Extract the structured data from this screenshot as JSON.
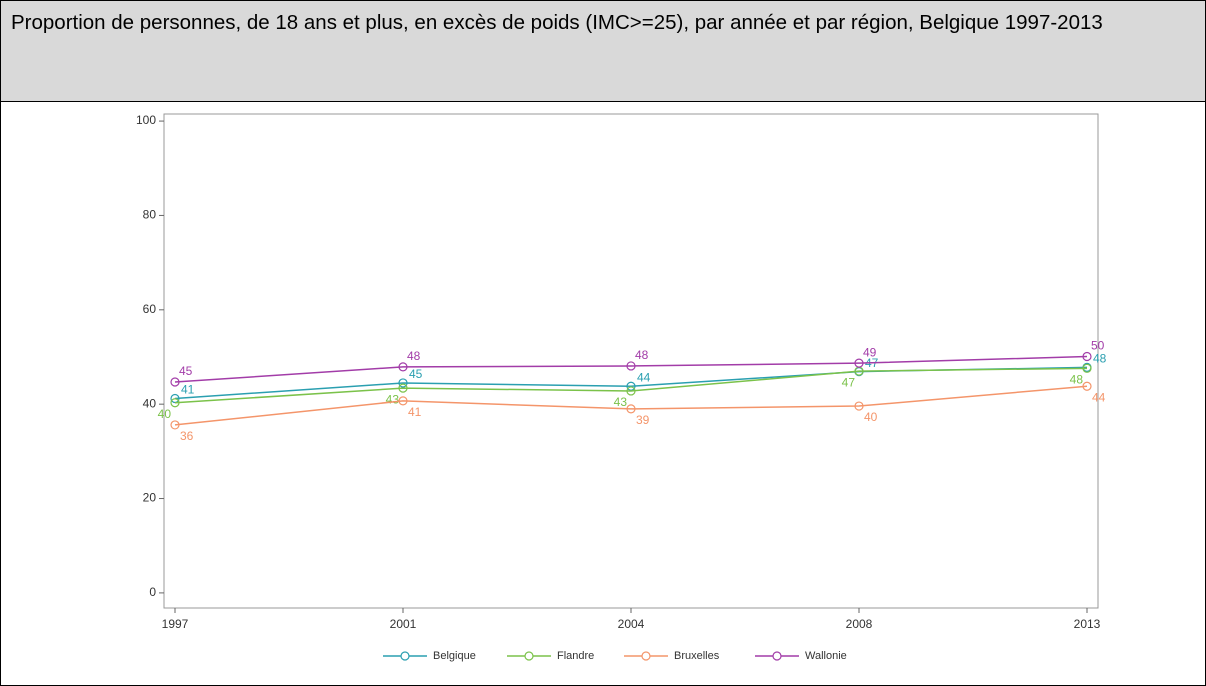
{
  "chart_data": {
    "type": "line",
    "title": "Proportion de personnes, de 18 ans et plus, en excès de poids (IMC>=25), par année et par région, Belgique 1997-2013",
    "categories": [
      "1997",
      "2001",
      "2004",
      "2008",
      "2013"
    ],
    "series": [
      {
        "name": "Belgique",
        "color": "#2a9fb0",
        "values": [
          41.2,
          44.5,
          43.8,
          46.9,
          47.8
        ],
        "value_labels": [
          "41",
          "45",
          "44",
          "47",
          "48"
        ]
      },
      {
        "name": "Flandre",
        "color": "#7bc24a",
        "values": [
          40.3,
          43.4,
          42.8,
          47.0,
          47.6
        ],
        "value_labels": [
          "40",
          "43",
          "43",
          "47",
          "48"
        ]
      },
      {
        "name": "Bruxelles",
        "color": "#f4956a",
        "values": [
          35.6,
          40.7,
          39.0,
          39.6,
          43.8
        ],
        "value_labels": [
          "36",
          "41",
          "39",
          "40",
          "44"
        ]
      },
      {
        "name": "Wallonie",
        "color": "#a23ca8",
        "values": [
          44.7,
          47.9,
          48.1,
          48.7,
          50.1
        ],
        "value_labels": [
          "45",
          "48",
          "48",
          "49",
          "50"
        ]
      }
    ],
    "ylim": [
      -3.2,
      101.5
    ],
    "yticks": [
      0,
      20,
      40,
      60,
      80,
      100
    ],
    "grid": false,
    "legend": "bottom"
  }
}
